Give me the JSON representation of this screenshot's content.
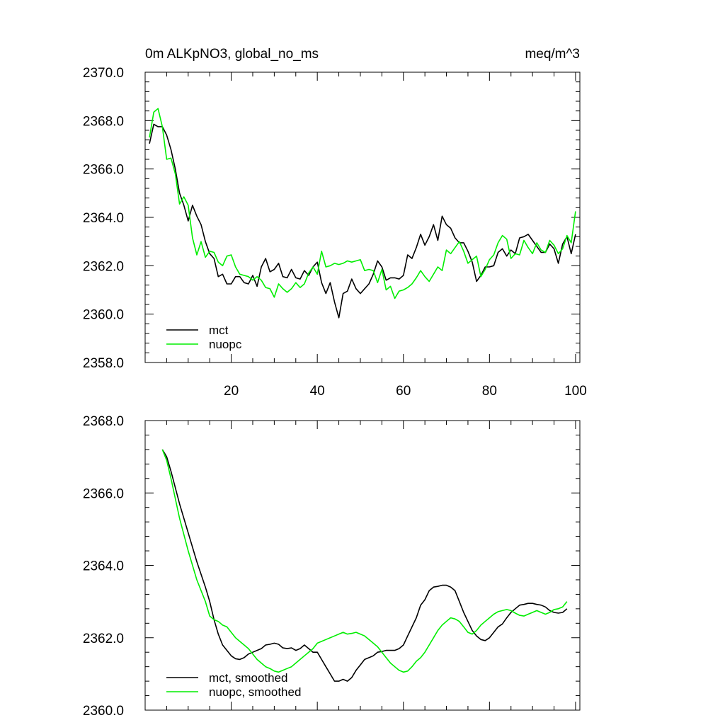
{
  "chart_data": [
    {
      "type": "line",
      "title_left": "0m ALKpNO3, global_no_ms",
      "title_right": "meq/m^3",
      "xlabel": "",
      "ylabel": "",
      "xlim": [
        0,
        101
      ],
      "ylim": [
        2358.0,
        2370.0
      ],
      "xticks": [
        20,
        40,
        60,
        80,
        100
      ],
      "xtick_labels": [
        "20",
        "40",
        "60",
        "80",
        "100"
      ],
      "yticks": [
        2358.0,
        2360.0,
        2362.0,
        2364.0,
        2366.0,
        2368.0,
        2370.0
      ],
      "ytick_labels": [
        "2358.0",
        "2360.0",
        "2362.0",
        "2364.0",
        "2366.0",
        "2368.0",
        "2370.0"
      ],
      "legend_position": "bottom-left",
      "series": [
        {
          "name": "mct",
          "color": "#000000",
          "x": [
            1,
            2,
            3,
            4,
            5,
            6,
            7,
            8,
            9,
            10,
            11,
            12,
            13,
            14,
            15,
            16,
            17,
            18,
            19,
            20,
            21,
            22,
            23,
            24,
            25,
            26,
            27,
            28,
            29,
            30,
            31,
            32,
            33,
            34,
            35,
            36,
            37,
            38,
            39,
            40,
            41,
            42,
            43,
            44,
            45,
            46,
            47,
            48,
            49,
            50,
            51,
            52,
            53,
            54,
            55,
            56,
            57,
            58,
            59,
            60,
            61,
            62,
            63,
            64,
            65,
            66,
            67,
            68,
            69,
            70,
            71,
            72,
            73,
            74,
            75,
            76,
            77,
            78,
            79,
            80,
            81,
            82,
            83,
            84,
            85,
            86,
            87,
            88,
            89,
            90,
            91,
            92,
            93,
            94,
            95,
            96,
            97,
            98,
            99,
            100
          ],
          "values": [
            2367.05,
            2367.85,
            2367.75,
            2367.75,
            2367.4,
            2366.8,
            2366.0,
            2365.0,
            2364.5,
            2363.85,
            2364.5,
            2364.05,
            2363.7,
            2363.0,
            2362.5,
            2362.3,
            2361.55,
            2361.65,
            2361.25,
            2361.25,
            2361.55,
            2361.55,
            2361.3,
            2361.25,
            2361.6,
            2361.15,
            2361.95,
            2362.3,
            2361.75,
            2361.85,
            2362.1,
            2361.55,
            2361.5,
            2361.85,
            2361.5,
            2361.45,
            2361.8,
            2361.6,
            2361.95,
            2362.15,
            2361.3,
            2360.85,
            2361.3,
            2360.5,
            2359.85,
            2360.85,
            2360.95,
            2361.45,
            2361.05,
            2360.85,
            2361.05,
            2361.25,
            2361.65,
            2362.2,
            2361.95,
            2361.4,
            2361.5,
            2361.5,
            2361.45,
            2361.6,
            2362.45,
            2362.3,
            2362.75,
            2363.3,
            2362.85,
            2363.2,
            2363.7,
            2363.05,
            2364.05,
            2363.7,
            2363.55,
            2363.15,
            2362.95,
            2362.95,
            2362.6,
            2362.15,
            2361.35,
            2361.6,
            2361.95,
            2361.95,
            2362.0,
            2362.55,
            2362.7,
            2362.4,
            2362.65,
            2362.5,
            2363.15,
            2363.2,
            2363.3,
            2363.05,
            2362.8,
            2362.55,
            2362.55,
            2362.9,
            2362.7,
            2362.1,
            2362.9,
            2363.2,
            2362.5,
            2363.3
          ]
        },
        {
          "name": "nuopc",
          "color": "#00ee00",
          "x": [
            1,
            2,
            3,
            4,
            5,
            6,
            7,
            8,
            9,
            10,
            11,
            12,
            13,
            14,
            15,
            16,
            17,
            18,
            19,
            20,
            21,
            22,
            23,
            24,
            25,
            26,
            27,
            28,
            29,
            30,
            31,
            32,
            33,
            34,
            35,
            36,
            37,
            38,
            39,
            40,
            41,
            42,
            43,
            44,
            45,
            46,
            47,
            48,
            49,
            50,
            51,
            52,
            53,
            54,
            55,
            56,
            57,
            58,
            59,
            60,
            61,
            62,
            63,
            64,
            65,
            66,
            67,
            68,
            69,
            70,
            71,
            72,
            73,
            74,
            75,
            76,
            77,
            78,
            79,
            80,
            81,
            82,
            83,
            84,
            85,
            86,
            87,
            88,
            89,
            90,
            91,
            92,
            93,
            94,
            95,
            96,
            97,
            98,
            99,
            100
          ],
          "values": [
            2367.3,
            2368.35,
            2368.5,
            2367.75,
            2366.4,
            2366.45,
            2365.8,
            2364.55,
            2364.85,
            2364.5,
            2363.15,
            2362.45,
            2363.0,
            2362.35,
            2362.6,
            2362.55,
            2362.15,
            2362.0,
            2362.4,
            2362.45,
            2361.95,
            2361.65,
            2361.6,
            2361.55,
            2361.4,
            2361.55,
            2361.4,
            2361.1,
            2361.05,
            2360.7,
            2361.25,
            2361.05,
            2360.9,
            2361.05,
            2361.3,
            2361.1,
            2361.25,
            2361.7,
            2361.95,
            2361.65,
            2362.6,
            2361.95,
            2362.0,
            2362.1,
            2362.05,
            2362.1,
            2362.2,
            2362.15,
            2362.2,
            2362.25,
            2361.8,
            2361.85,
            2361.8,
            2361.3,
            2361.85,
            2361.0,
            2361.15,
            2360.65,
            2360.95,
            2361.0,
            2361.1,
            2361.25,
            2361.5,
            2361.8,
            2361.55,
            2361.35,
            2361.65,
            2361.95,
            2361.8,
            2362.65,
            2362.5,
            2362.75,
            2363.0,
            2362.6,
            2362.1,
            2362.25,
            2362.4,
            2361.55,
            2361.85,
            2362.25,
            2362.45,
            2362.95,
            2363.25,
            2363.1,
            2362.3,
            2362.5,
            2362.45,
            2363.05,
            2362.75,
            2362.5,
            2362.95,
            2362.65,
            2362.55,
            2363.05,
            2362.85,
            2362.5,
            2362.7,
            2363.25,
            2362.95,
            2364.25
          ]
        }
      ]
    },
    {
      "type": "line",
      "xlabel": "",
      "ylabel": "",
      "xlim": [
        0,
        101
      ],
      "ylim": [
        2360.0,
        2368.0
      ],
      "xticks": [
        20,
        40,
        60,
        80,
        100
      ],
      "yticks": [
        2360.0,
        2362.0,
        2364.0,
        2366.0,
        2368.0
      ],
      "ytick_labels": [
        "2360.0",
        "2362.0",
        "2364.0",
        "2366.0",
        "2368.0"
      ],
      "legend_position": "bottom-left",
      "series": [
        {
          "name": "mct, smoothed",
          "color": "#000000",
          "x": [
            4,
            5,
            6,
            8,
            10,
            12,
            14,
            15,
            16,
            17,
            18,
            19,
            20,
            21,
            22,
            23,
            24,
            25,
            26,
            27,
            28,
            29,
            30,
            31,
            32,
            33,
            34,
            35,
            36,
            37,
            38,
            39,
            40,
            41,
            42,
            43,
            44,
            45,
            46,
            47,
            48,
            49,
            50,
            51,
            52,
            53,
            54,
            55,
            56,
            57,
            58,
            59,
            60,
            61,
            62,
            63,
            64,
            65,
            66,
            67,
            68,
            69,
            70,
            71,
            72,
            73,
            74,
            75,
            76,
            77,
            78,
            79,
            80,
            81,
            82,
            83,
            84,
            85,
            86,
            87,
            88,
            89,
            90,
            91,
            92,
            93,
            94,
            95,
            96,
            97,
            98
          ],
          "values": [
            2367.2,
            2367.0,
            2366.6,
            2365.7,
            2364.9,
            2364.1,
            2363.4,
            2363.0,
            2362.5,
            2362.1,
            2361.8,
            2361.65,
            2361.5,
            2361.42,
            2361.4,
            2361.45,
            2361.55,
            2361.6,
            2361.65,
            2361.7,
            2361.8,
            2361.82,
            2361.85,
            2361.82,
            2361.72,
            2361.7,
            2361.72,
            2361.65,
            2361.7,
            2361.8,
            2361.7,
            2361.6,
            2361.6,
            2361.4,
            2361.2,
            2361.0,
            2360.8,
            2360.8,
            2360.85,
            2360.8,
            2360.9,
            2361.1,
            2361.25,
            2361.4,
            2361.45,
            2361.5,
            2361.6,
            2361.62,
            2361.65,
            2361.65,
            2361.65,
            2361.7,
            2361.8,
            2362.05,
            2362.3,
            2362.55,
            2362.9,
            2363.05,
            2363.3,
            2363.4,
            2363.42,
            2363.45,
            2363.45,
            2363.4,
            2363.3,
            2363.0,
            2362.7,
            2362.45,
            2362.2,
            2362.05,
            2361.95,
            2361.92,
            2362.0,
            2362.15,
            2362.3,
            2362.38,
            2362.55,
            2362.7,
            2362.8,
            2362.9,
            2362.92,
            2362.95,
            2362.95,
            2362.92,
            2362.9,
            2362.85,
            2362.75,
            2362.7,
            2362.68,
            2362.7,
            2362.8
          ]
        },
        {
          "name": "nuopc, smoothed",
          "color": "#00ee00",
          "x": [
            4,
            5,
            6,
            8,
            10,
            12,
            14,
            15,
            16,
            17,
            18,
            19,
            20,
            21,
            22,
            23,
            24,
            25,
            26,
            27,
            28,
            29,
            30,
            31,
            32,
            33,
            34,
            35,
            36,
            37,
            38,
            39,
            40,
            41,
            42,
            43,
            44,
            45,
            46,
            47,
            48,
            49,
            50,
            51,
            52,
            53,
            54,
            55,
            56,
            57,
            58,
            59,
            60,
            61,
            62,
            63,
            64,
            65,
            66,
            67,
            68,
            69,
            70,
            71,
            72,
            73,
            74,
            75,
            76,
            77,
            78,
            79,
            80,
            81,
            82,
            83,
            84,
            85,
            86,
            87,
            88,
            89,
            90,
            91,
            92,
            93,
            94,
            95,
            96,
            97,
            98
          ],
          "values": [
            2367.2,
            2366.9,
            2366.4,
            2365.3,
            2364.4,
            2363.6,
            2363.0,
            2362.6,
            2362.5,
            2362.45,
            2362.35,
            2362.3,
            2362.15,
            2362.0,
            2361.9,
            2361.8,
            2361.7,
            2361.55,
            2361.4,
            2361.3,
            2361.2,
            2361.15,
            2361.08,
            2361.05,
            2361.1,
            2361.15,
            2361.2,
            2361.3,
            2361.4,
            2361.5,
            2361.6,
            2361.7,
            2361.85,
            2361.9,
            2361.95,
            2362.0,
            2362.05,
            2362.1,
            2362.15,
            2362.1,
            2362.12,
            2362.15,
            2362.1,
            2362.05,
            2361.95,
            2361.85,
            2361.75,
            2361.6,
            2361.45,
            2361.3,
            2361.2,
            2361.1,
            2361.05,
            2361.08,
            2361.2,
            2361.35,
            2361.45,
            2361.6,
            2361.8,
            2362.0,
            2362.2,
            2362.35,
            2362.45,
            2362.55,
            2362.52,
            2362.45,
            2362.3,
            2362.15,
            2362.1,
            2362.2,
            2362.35,
            2362.45,
            2362.55,
            2362.65,
            2362.72,
            2362.75,
            2362.78,
            2362.75,
            2362.68,
            2362.62,
            2362.6,
            2362.65,
            2362.7,
            2362.75,
            2362.7,
            2362.65,
            2362.7,
            2362.78,
            2362.8,
            2362.85,
            2363.0
          ]
        }
      ]
    }
  ]
}
